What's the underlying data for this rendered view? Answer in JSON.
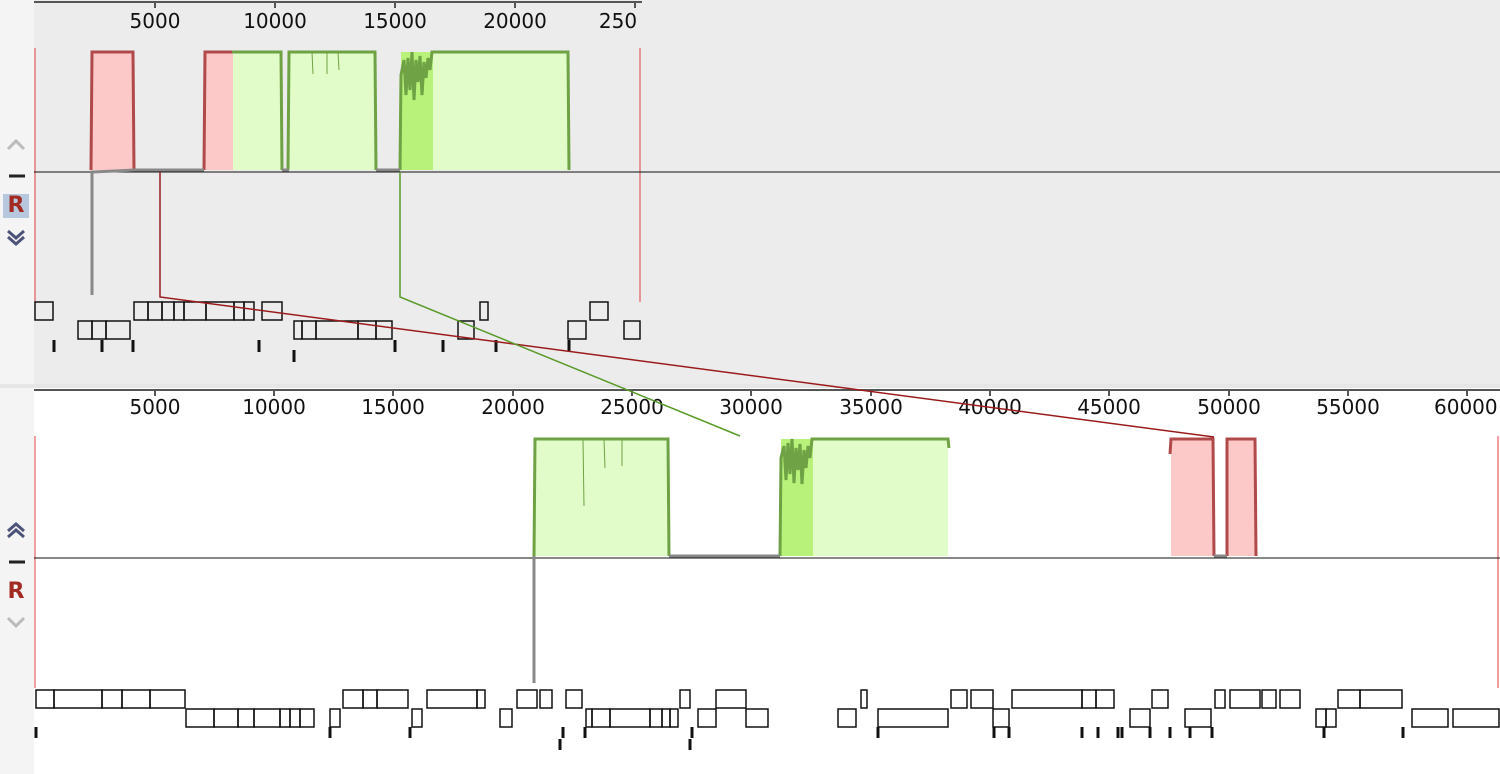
{
  "top_panel": {
    "ruler_ticks": [
      "5000",
      "10000",
      "15000",
      "20000",
      "250"
    ],
    "controls": {
      "r_label": "R"
    }
  },
  "bottom_panel": {
    "ruler_ticks": [
      "5000",
      "10000",
      "15000",
      "20000",
      "25000",
      "30000",
      "35000",
      "40000",
      "45000",
      "50000",
      "55000",
      "60000"
    ],
    "controls": {
      "r_label": "R"
    }
  },
  "colors": {
    "panel_background": "#ececec",
    "forward_match_fill": "#e2fcc9",
    "forward_match_line": "#6ea244",
    "reverse_match_fill": "#fdc8c8",
    "reverse_match_line": "#b04a4a",
    "identity_line": "#888888",
    "connector_forward": "#5a9a2a",
    "connector_reverse": "#9b1b1b",
    "boundary": "#e04040"
  },
  "icons": [
    "chevron-up-icon",
    "minus-icon",
    "reverse-r-icon",
    "double-chevron-down-icon"
  ]
}
